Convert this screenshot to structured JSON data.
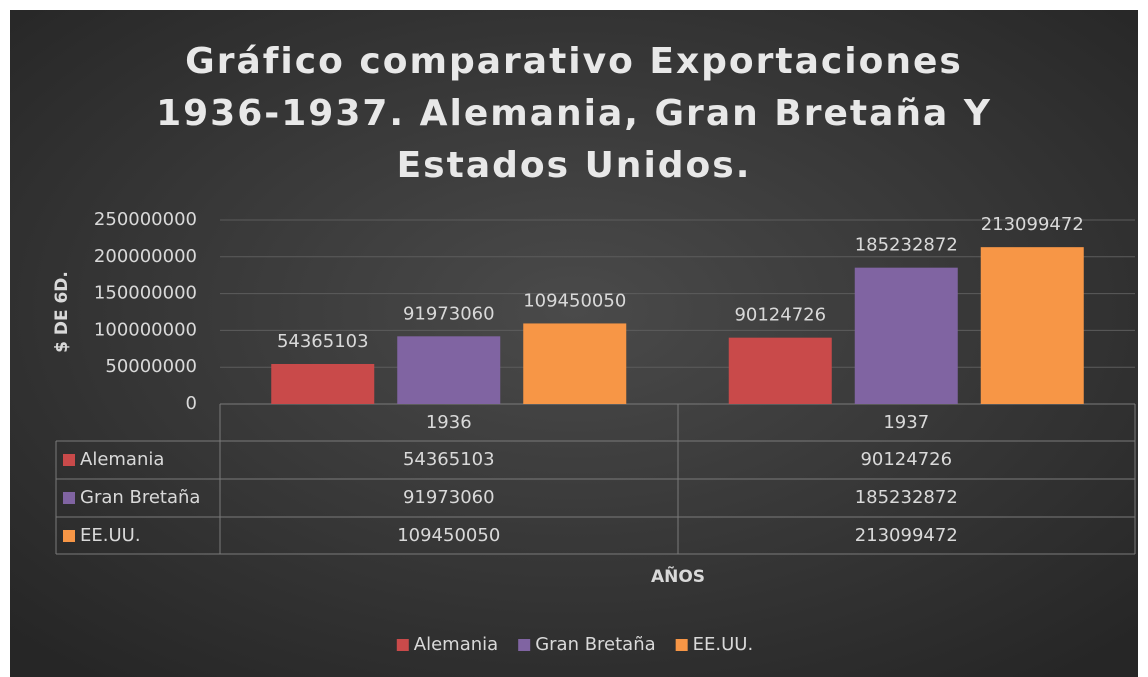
{
  "chart_data": {
    "type": "bar",
    "title": "Gráfico comparativo Exportaciones 1936-1937. Alemania, Gran Bretaña Y Estados Unidos.",
    "y_axis_label": "$ DE 6D.",
    "x_axis_label": "AÑOS",
    "categories": [
      "1936",
      "1937"
    ],
    "series": [
      {
        "name": "Alemania",
        "color": "#c94a4a",
        "values": [
          54365103,
          90124726
        ]
      },
      {
        "name": "Gran Bretaña",
        "color": "#8064a2",
        "values": [
          91973060,
          185232872
        ]
      },
      {
        "name": "EE.UU.",
        "color": "#f79646",
        "values": [
          109450050,
          213099472
        ]
      }
    ],
    "ylim": [
      0,
      250000000
    ],
    "yticks": [
      0,
      50000000,
      100000000,
      150000000,
      200000000,
      250000000
    ],
    "grid": true,
    "data_labels": true,
    "data_table": true,
    "legend": "bottom"
  }
}
